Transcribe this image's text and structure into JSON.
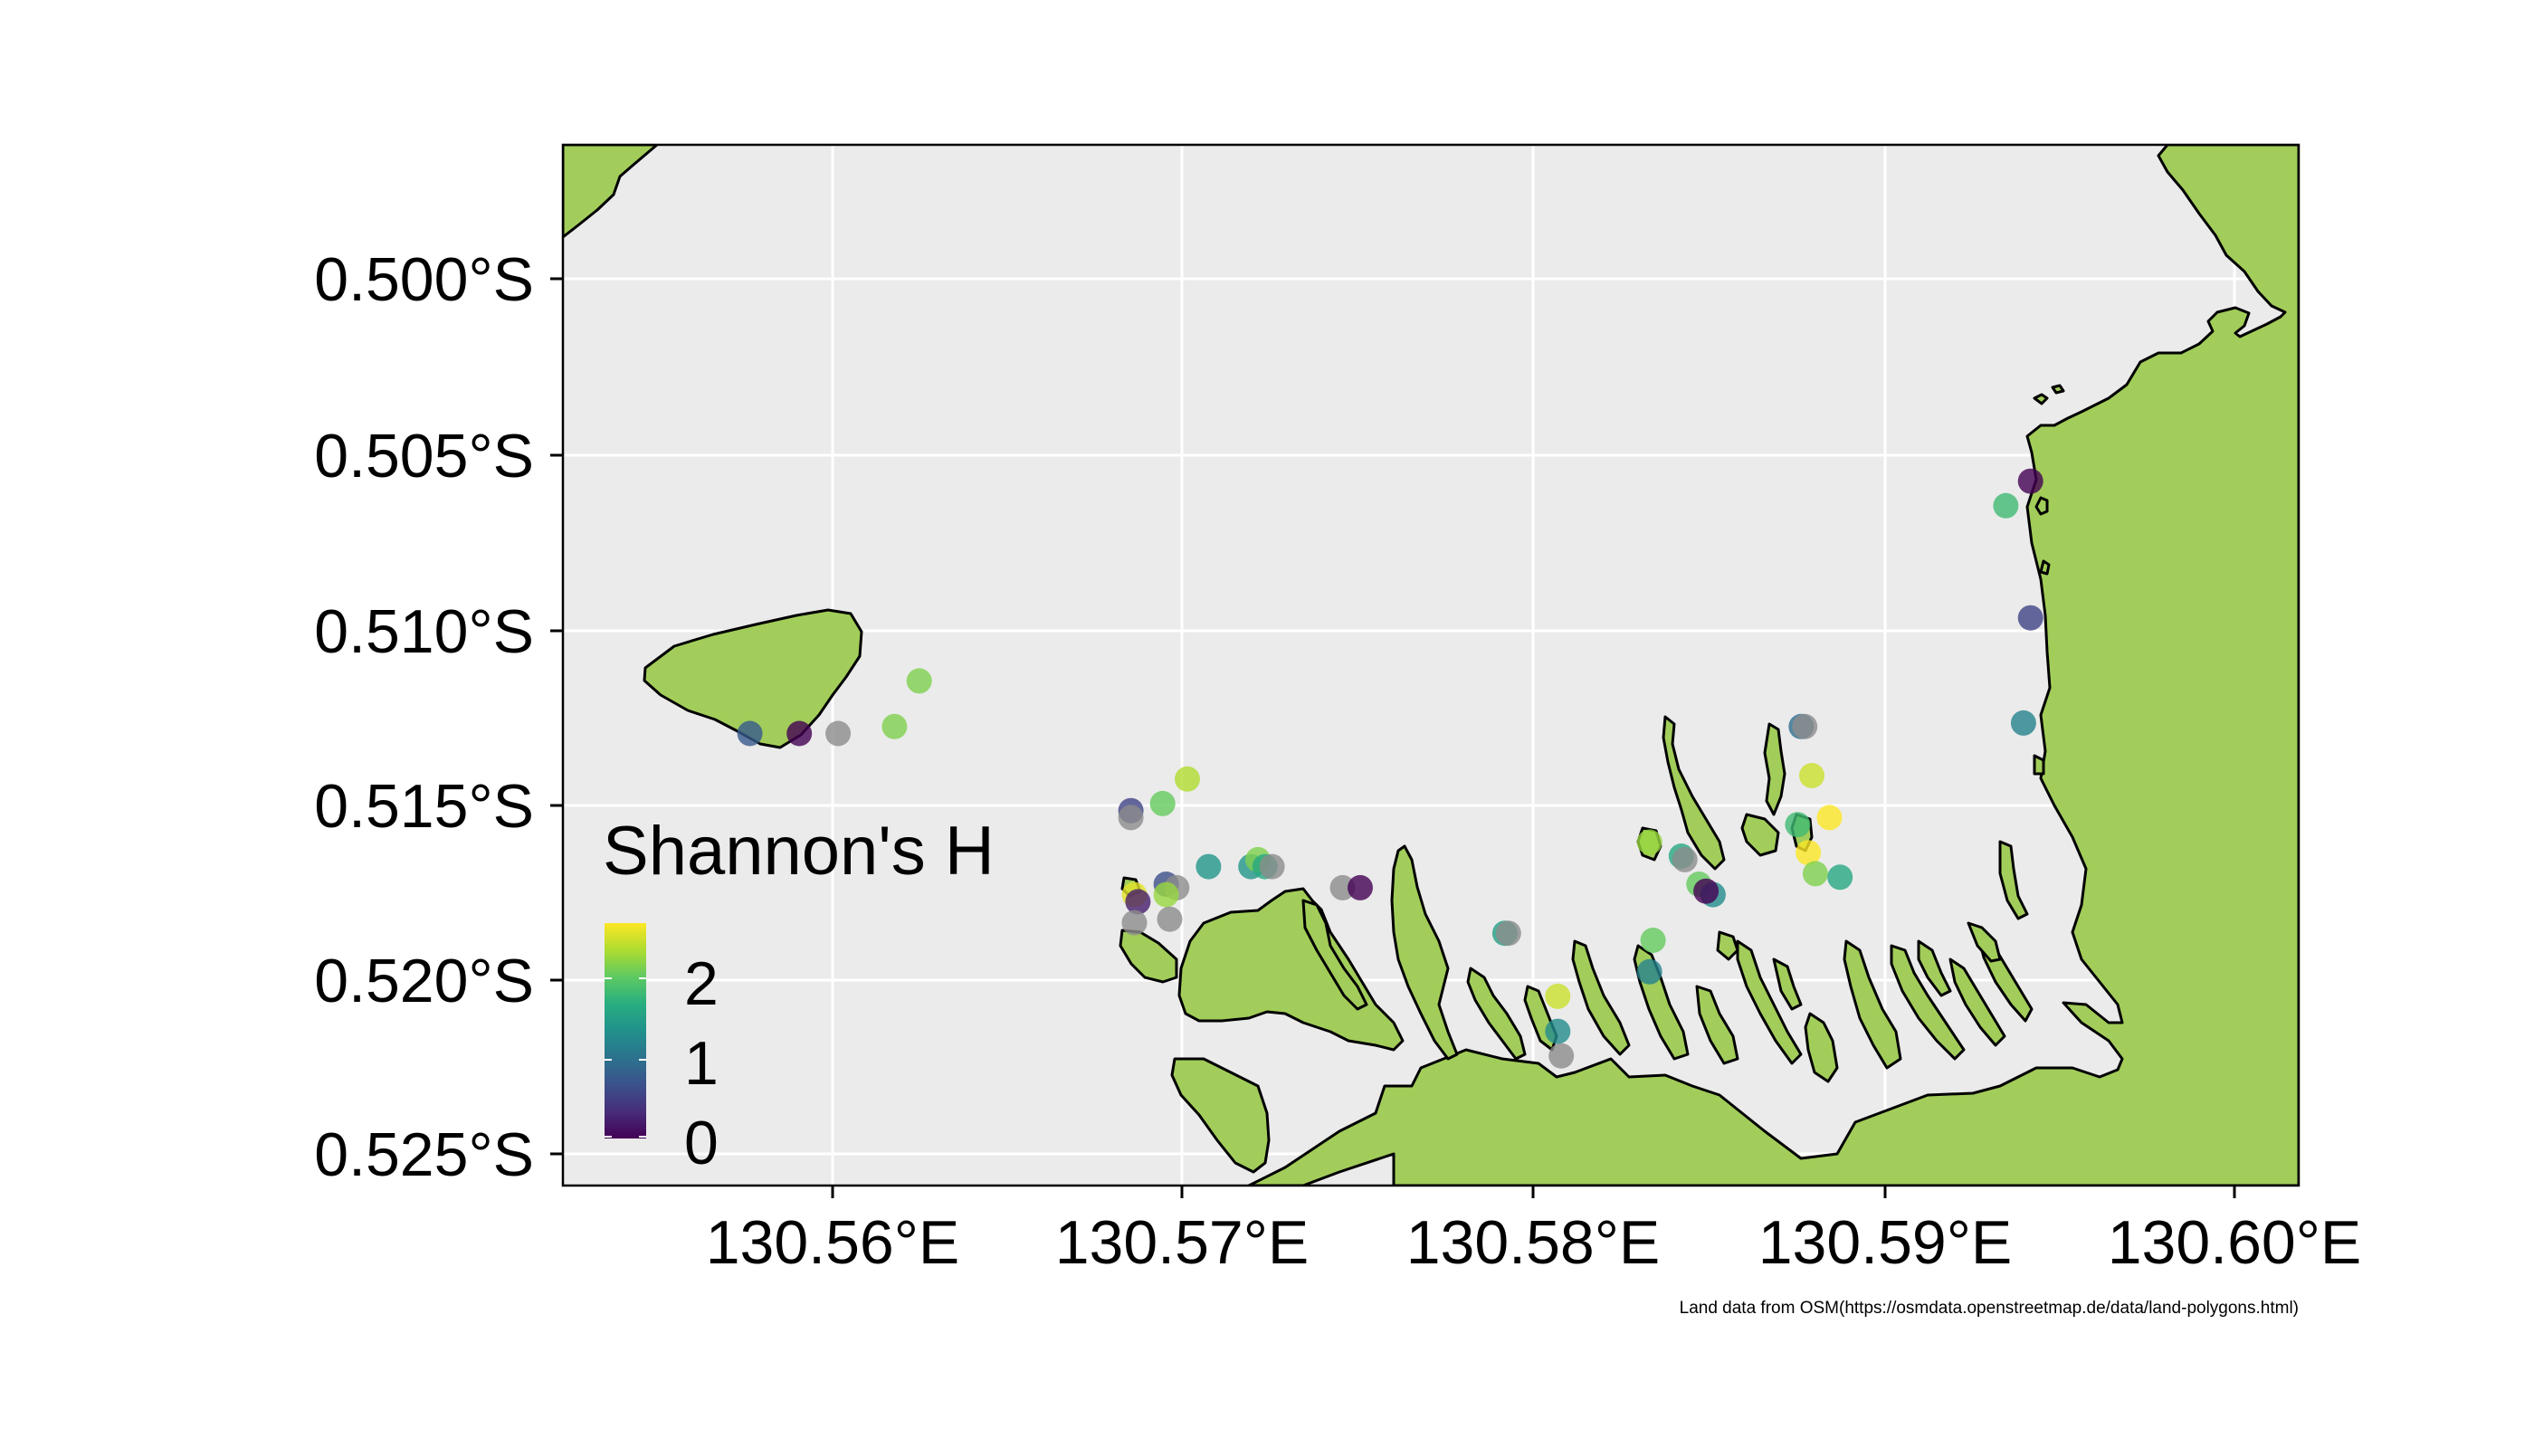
{
  "map": {
    "colors": {
      "panel_background": "#EBEBEB",
      "gridline": "#FFFFFF",
      "land_fill": "#A2CD5A",
      "coastline": "#000000",
      "missing_value": "#8C8C8C"
    },
    "x_axis": {
      "tick_labels": [
        "130.56°E",
        "130.57°E",
        "130.58°E",
        "130.59°E",
        "130.60°E"
      ]
    },
    "y_axis": {
      "tick_labels": [
        "0.500°S",
        "0.505°S",
        "0.510°S",
        "0.515°S",
        "0.520°S",
        "0.525°S"
      ]
    },
    "legend": {
      "title": "Shannon's H",
      "palette": "viridis",
      "tick_labels": [
        "0",
        "1",
        "2"
      ]
    },
    "caption": "Land data from OSM(https://osmdata.openstreetmap.de/data/land-polygons.html)"
  },
  "chart_data": {
    "type": "scatter",
    "xlabel": "",
    "ylabel": "",
    "xlim": [
      130.5523,
      130.6015
    ],
    "ylim": [
      -0.5259,
      -0.4962
    ],
    "x_ticks": [
      130.56,
      130.57,
      130.58,
      130.59,
      130.6
    ],
    "y_ticks": [
      -0.5,
      -0.505,
      -0.51,
      -0.515,
      -0.52,
      -0.525
    ],
    "color_variable": "Shannon's H",
    "color_range": [
      0,
      2.5
    ],
    "grid": true,
    "legend_position": "bottom-left inside",
    "points": [
      {
        "lon": 130.5624,
        "lat": -0.5115,
        "h": 2.0
      },
      {
        "lon": 130.5617,
        "lat": -0.5128,
        "h": 2.0
      },
      {
        "lon": 130.5601,
        "lat": -0.513,
        "h": null
      },
      {
        "lon": 130.559,
        "lat": -0.513,
        "h": 0.0
      },
      {
        "lon": 130.5576,
        "lat": -0.513,
        "h": 0.7
      },
      {
        "lon": 130.57,
        "lat": -0.5143,
        "h": 2.2
      },
      {
        "lon": 130.5693,
        "lat": -0.515,
        "h": 1.9
      },
      {
        "lon": 130.5684,
        "lat": -0.5152,
        "h": 0.5
      },
      {
        "lon": 130.5684,
        "lat": -0.5154,
        "h": null
      },
      {
        "lon": 130.5706,
        "lat": -0.5168,
        "h": 1.3
      },
      {
        "lon": 130.5718,
        "lat": -0.5168,
        "h": 1.3
      },
      {
        "lon": 130.572,
        "lat": -0.5166,
        "h": 2.0
      },
      {
        "lon": 130.5722,
        "lat": -0.5168,
        "h": 1.5
      },
      {
        "lon": 130.5724,
        "lat": -0.5168,
        "h": null
      },
      {
        "lon": 130.5694,
        "lat": -0.5173,
        "h": 0.6
      },
      {
        "lon": 130.5697,
        "lat": -0.5174,
        "h": null
      },
      {
        "lon": 130.5685,
        "lat": -0.5176,
        "h": 2.4
      },
      {
        "lon": 130.5686,
        "lat": -0.5178,
        "h": 0.2
      },
      {
        "lon": 130.5694,
        "lat": -0.5176,
        "h": 2.1
      },
      {
        "lon": 130.5685,
        "lat": -0.5184,
        "h": null
      },
      {
        "lon": 130.5695,
        "lat": -0.5183,
        "h": null
      },
      {
        "lon": 130.5744,
        "lat": -0.5174,
        "h": null
      },
      {
        "lon": 130.5749,
        "lat": -0.5174,
        "h": 0.0
      },
      {
        "lon": 130.579,
        "lat": -0.5187,
        "h": 1.4
      },
      {
        "lon": 130.5791,
        "lat": -0.5187,
        "h": null
      },
      {
        "lon": 130.5805,
        "lat": -0.5205,
        "h": 2.3
      },
      {
        "lon": 130.5805,
        "lat": -0.5215,
        "h": 1.2
      },
      {
        "lon": 130.5806,
        "lat": -0.5222,
        "h": null
      },
      {
        "lon": 130.5831,
        "lat": -0.5161,
        "h": 2.1
      },
      {
        "lon": 130.584,
        "lat": -0.5165,
        "h": 1.5
      },
      {
        "lon": 130.5841,
        "lat": -0.5166,
        "h": null
      },
      {
        "lon": 130.5845,
        "lat": -0.5173,
        "h": 1.9
      },
      {
        "lon": 130.5849,
        "lat": -0.5176,
        "h": 1.2
      },
      {
        "lon": 130.5847,
        "lat": -0.5175,
        "h": 0.0
      },
      {
        "lon": 130.5832,
        "lat": -0.5189,
        "h": 1.9
      },
      {
        "lon": 130.5831,
        "lat": -0.5198,
        "h": 1.1
      },
      {
        "lon": 130.5874,
        "lat": -0.5128,
        "h": 0.9
      },
      {
        "lon": 130.5875,
        "lat": -0.5128,
        "h": null
      },
      {
        "lon": 130.5877,
        "lat": -0.5142,
        "h": 2.3
      },
      {
        "lon": 130.5873,
        "lat": -0.5156,
        "h": 1.7
      },
      {
        "lon": 130.5882,
        "lat": -0.5154,
        "h": 2.5
      },
      {
        "lon": 130.5876,
        "lat": -0.5164,
        "h": 2.5
      },
      {
        "lon": 130.5878,
        "lat": -0.517,
        "h": 2.0
      },
      {
        "lon": 130.5885,
        "lat": -0.5171,
        "h": 1.5
      },
      {
        "lon": 130.5932,
        "lat": -0.5065,
        "h": 1.7
      },
      {
        "lon": 130.5939,
        "lat": -0.5058,
        "h": 0.0
      },
      {
        "lon": 130.5939,
        "lat": -0.5097,
        "h": 0.5
      },
      {
        "lon": 130.5937,
        "lat": -0.5127,
        "h": 1.1
      }
    ]
  }
}
